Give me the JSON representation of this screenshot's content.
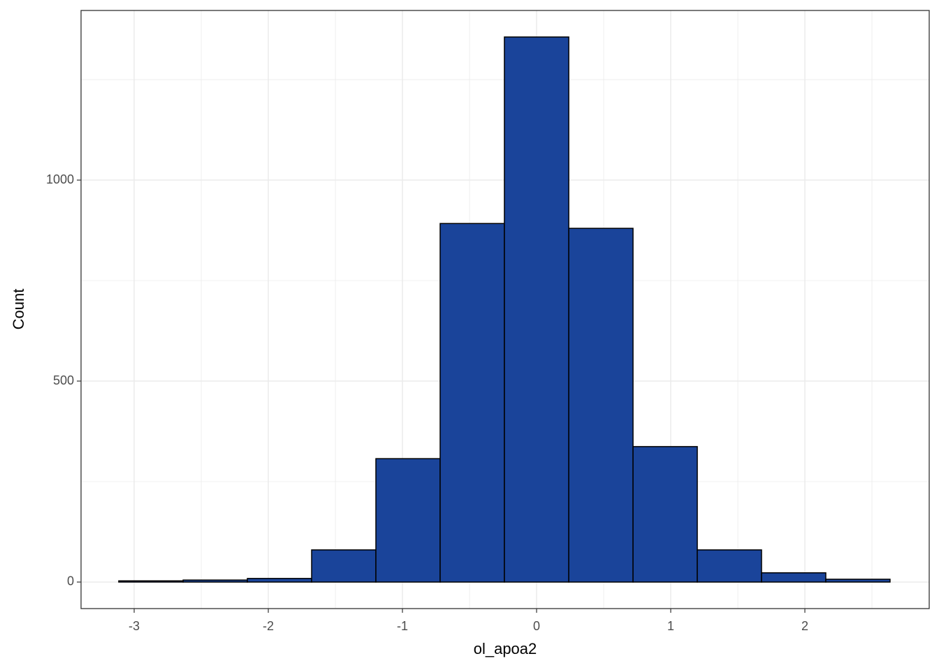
{
  "chart_data": {
    "type": "histogram",
    "x_label": "ol_apoa2",
    "y_label": "Count",
    "bins": [
      -3.115,
      -2.635,
      -2.156,
      -1.677,
      -1.198,
      -0.719,
      -0.24,
      0.24,
      0.719,
      1.198,
      1.677,
      2.156,
      2.635
    ],
    "values": [
      3,
      5,
      9,
      80,
      307,
      892,
      1356,
      880,
      337,
      80,
      23,
      7
    ],
    "color": "#1a449a",
    "edge_color": "#000000",
    "xlim": [
      -3.396,
      2.927
    ],
    "ylim": [
      -66,
      1422
    ],
    "xticks": [
      -3,
      -2,
      -1,
      0,
      1,
      2
    ],
    "yticks": [
      0,
      500,
      1000
    ],
    "minor_xticks": [
      -2.5,
      -1.5,
      -0.5,
      0.5,
      1.5,
      2.5
    ],
    "minor_yticks": [
      250,
      750,
      1250
    ],
    "grid": true
  }
}
